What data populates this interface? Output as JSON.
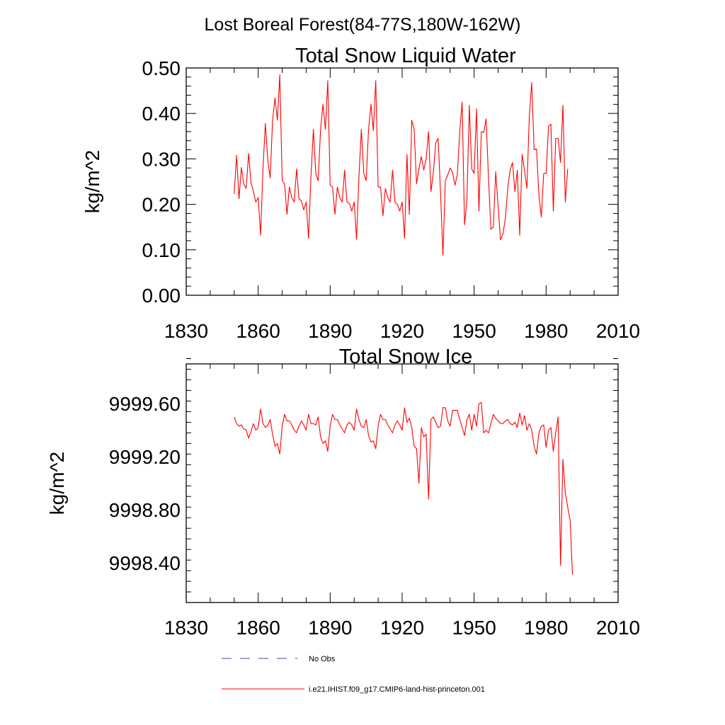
{
  "figure": {
    "title": "Lost Boreal Forest(84-77S,180W-162W)"
  },
  "chart_data": [
    {
      "type": "line",
      "title": "Total Snow Liquid Water",
      "ylabel": "kg/m^2",
      "xlim": [
        1830,
        2010
      ],
      "ylim": [
        0,
        0.5
      ],
      "xticks": [
        1830,
        1860,
        1890,
        1920,
        1950,
        1980,
        2010
      ],
      "xtick_labels": [
        "1830",
        "1860",
        "1890",
        "1920",
        "1950",
        "1980",
        "2010"
      ],
      "yticks": [
        0,
        0.1,
        0.2,
        0.3,
        0.4,
        0.5
      ],
      "ytick_labels": [
        "0.00",
        "0.10",
        "0.20",
        "0.30",
        "0.40",
        "0.50"
      ],
      "grid": false,
      "series": [
        {
          "name": "i.e21.IHIST.f09_g17.CMIP6-land-hist-princeton.001",
          "color": "#ff0000",
          "x_start": 1850,
          "x_step": 1,
          "values": [
            0.223,
            0.308,
            0.212,
            0.281,
            0.245,
            0.235,
            0.312,
            0.248,
            0.228,
            0.205,
            0.215,
            0.132,
            0.28,
            0.378,
            0.298,
            0.258,
            0.385,
            0.434,
            0.385,
            0.485,
            0.252,
            0.245,
            0.178,
            0.238,
            0.215,
            0.205,
            0.278,
            0.212,
            0.208,
            0.188,
            0.205,
            0.125,
            0.262,
            0.365,
            0.268,
            0.252,
            0.365,
            0.42,
            0.365,
            0.472,
            0.242,
            0.238,
            0.178,
            0.238,
            0.215,
            0.205,
            0.275,
            0.205,
            0.202,
            0.185,
            0.205,
            0.123,
            0.262,
            0.365,
            0.268,
            0.252,
            0.365,
            0.42,
            0.362,
            0.472,
            0.238,
            0.238,
            0.175,
            0.235,
            0.215,
            0.205,
            0.275,
            0.205,
            0.2,
            0.185,
            0.205,
            0.125,
            0.31,
            0.178,
            0.385,
            0.365,
            0.245,
            0.278,
            0.305,
            0.275,
            0.3,
            0.36,
            0.228,
            0.27,
            0.335,
            0.345,
            0.225,
            0.088,
            0.252,
            0.265,
            0.28,
            0.27,
            0.242,
            0.265,
            0.36,
            0.425,
            0.155,
            0.21,
            0.418,
            0.278,
            0.268,
            0.41,
            0.185,
            0.36,
            0.358,
            0.388,
            0.255,
            0.145,
            0.15,
            0.272,
            0.195,
            0.122,
            0.135,
            0.168,
            0.235,
            0.275,
            0.292,
            0.228,
            0.275,
            0.132,
            0.31,
            0.275,
            0.235,
            0.395,
            0.468,
            0.32,
            0.322,
            0.22,
            0.172,
            0.268,
            0.268,
            0.372,
            0.376,
            0.185,
            0.345,
            0.345,
            0.292,
            0.418,
            0.205,
            0.278
          ]
        }
      ]
    },
    {
      "type": "line",
      "title": "Total Snow Ice",
      "ylabel": "kg/m^2",
      "xlim": [
        1830,
        2010
      ],
      "ylim": [
        9998.1,
        9999.9
      ],
      "xticks": [
        1830,
        1860,
        1890,
        1920,
        1950,
        1980,
        2010
      ],
      "xtick_labels": [
        "1830",
        "1860",
        "1890",
        "1920",
        "1950",
        "1980",
        "2010"
      ],
      "yticks": [
        9998.4,
        9998.8,
        9999.2,
        9999.6
      ],
      "ytick_labels": [
        "9998.40",
        "9998.80",
        "9999.20",
        "9999.60"
      ],
      "grid": false,
      "series": [
        {
          "name": "i.e21.IHIST.f09_g17.CMIP6-land-hist-princeton.001",
          "color": "#ff0000",
          "x_start": 1850,
          "x_step": 1,
          "values": [
            9999.5,
            9999.45,
            9999.43,
            9999.44,
            9999.41,
            9999.4,
            9999.34,
            9999.39,
            9999.45,
            9999.4,
            9999.42,
            9999.56,
            9999.45,
            9999.42,
            9999.44,
            9999.48,
            9999.37,
            9999.28,
            9999.3,
            9999.22,
            9999.43,
            9999.52,
            9999.47,
            9999.47,
            9999.44,
            9999.4,
            9999.38,
            9999.43,
            9999.47,
            9999.44,
            9999.4,
            9999.52,
            9999.45,
            9999.45,
            9999.44,
            9999.5,
            9999.35,
            9999.3,
            9999.32,
            9999.24,
            9999.43,
            9999.52,
            9999.48,
            9999.48,
            9999.44,
            9999.41,
            9999.38,
            9999.44,
            9999.46,
            9999.44,
            9999.4,
            9999.56,
            9999.48,
            9999.43,
            9999.42,
            9999.48,
            9999.36,
            9999.31,
            9999.32,
            9999.26,
            9999.43,
            9999.52,
            9999.48,
            9999.48,
            9999.44,
            9999.41,
            9999.38,
            9999.44,
            9999.47,
            9999.44,
            9999.4,
            9999.57,
            9999.46,
            9999.49,
            9999.42,
            9999.28,
            9999.26,
            9999.0,
            9999.42,
            9999.35,
            9999.37,
            9998.88,
            9999.48,
            9999.5,
            9999.46,
            9999.42,
            9999.43,
            9999.57,
            9999.57,
            9999.47,
            9999.43,
            9999.55,
            9999.55,
            9999.55,
            9999.48,
            9999.42,
            9999.36,
            9999.48,
            9999.52,
            9999.4,
            9999.52,
            9999.43,
            9999.6,
            9999.61,
            9999.38,
            9999.4,
            9999.38,
            9999.45,
            9999.52,
            9999.49,
            9999.47,
            9999.45,
            9999.45,
            9999.47,
            9999.48,
            9999.45,
            9999.44,
            9999.46,
            9999.42,
            9999.53,
            9999.44,
            9999.51,
            9999.4,
            9999.45,
            9999.4,
            9999.28,
            9999.22,
            9999.38,
            9999.43,
            9999.44,
            9999.27,
            9999.4,
            9999.42,
            9999.24,
            9999.38,
            9999.5,
            9998.38,
            9999.18,
            9998.93,
            9998.82,
            9998.72,
            9998.31
          ]
        }
      ]
    }
  ],
  "legend": {
    "placement": "bottom",
    "entries": [
      {
        "label": "No Obs",
        "color": "#4a4aaa",
        "dash": true
      },
      {
        "label": "i.e21.IHIST.f09_g17.CMIP6-land-hist-princeton.001",
        "color": "#ff0000",
        "dash": false
      }
    ]
  }
}
